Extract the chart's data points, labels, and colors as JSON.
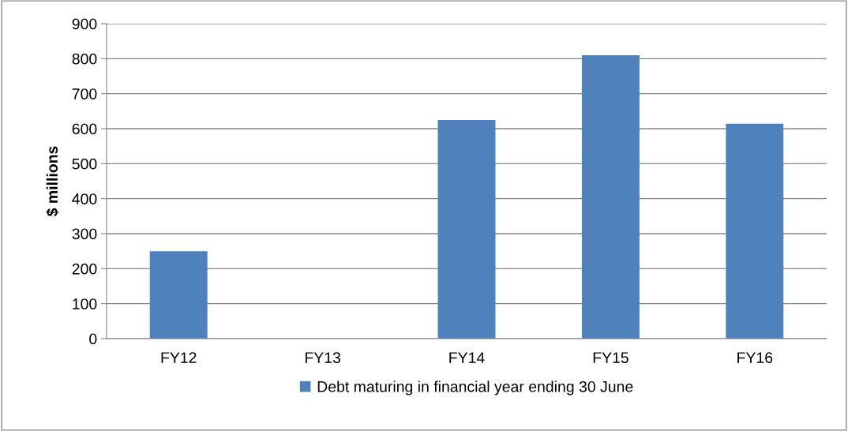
{
  "chart_data": {
    "type": "bar",
    "ylabel": "$ millions",
    "categories": [
      "FY12",
      "FY13",
      "FY14",
      "FY15",
      "FY16"
    ],
    "series": [
      {
        "name": "Debt maturing in financial year ending 30 June",
        "color": "#4f81bd",
        "values": [
          250,
          0,
          625,
          810,
          614
        ]
      }
    ],
    "ylim": [
      0,
      900
    ],
    "yticks": [
      0,
      100,
      200,
      300,
      400,
      500,
      600,
      700,
      800,
      900
    ],
    "grid": "y",
    "legend": "bottom"
  }
}
